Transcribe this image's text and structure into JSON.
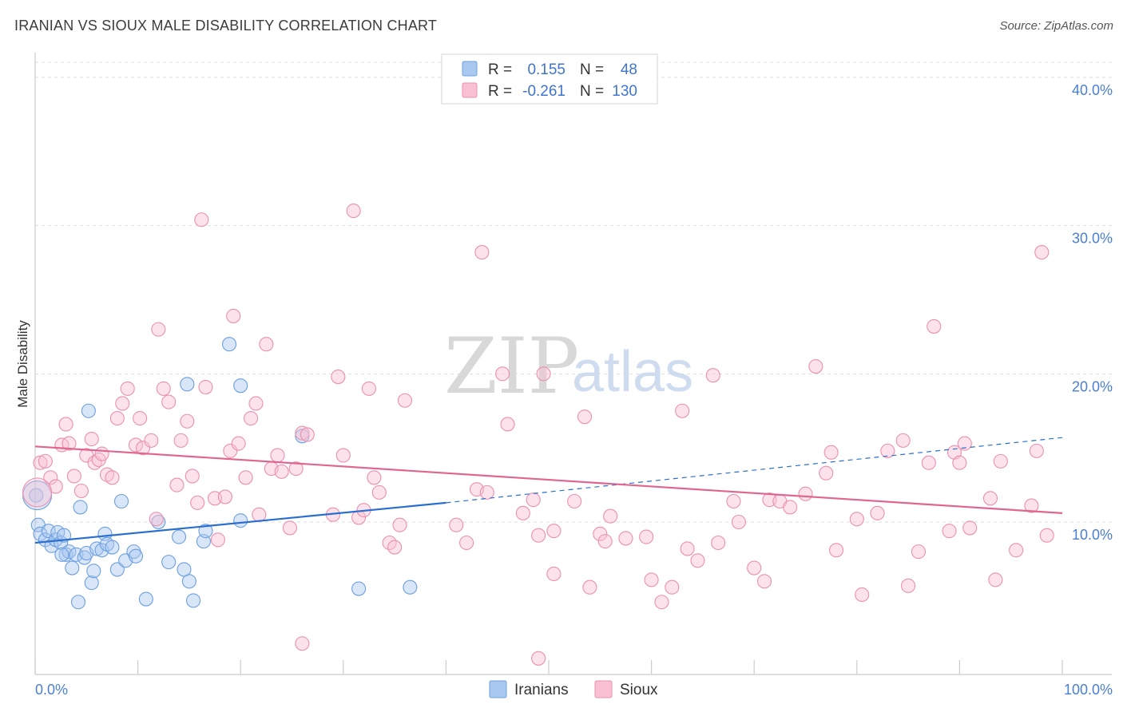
{
  "header": {
    "title": "IRANIAN VS SIOUX MALE DISABILITY CORRELATION CHART",
    "source": "Source: ZipAtlas.com"
  },
  "watermark": {
    "zip": "ZIP",
    "atlas": "atlas"
  },
  "chart_data": {
    "type": "scatter",
    "ylabel": "Male Disability",
    "xlim": [
      0,
      100
    ],
    "ylim": [
      0,
      42
    ],
    "y_ticks": [
      {
        "value": 10,
        "label": "10.0%"
      },
      {
        "value": 20,
        "label": "20.0%"
      },
      {
        "value": 30,
        "label": "30.0%"
      },
      {
        "value": 40,
        "label": "40.0%"
      }
    ],
    "x_tick_labels": {
      "left": "0.0%",
      "right": "100.0%"
    },
    "grid": true,
    "legend": {
      "placement": "top-center",
      "rows": [
        {
          "r_label": "R =",
          "r_value": "0.155",
          "n_label": "N =",
          "n_value": "48",
          "color": "#a9c8f0",
          "stroke": "#6d9fe0"
        },
        {
          "r_label": "R =",
          "r_value": "-0.261",
          "n_label": "N =",
          "n_value": "130",
          "color": "#f8c0d2",
          "stroke": "#eb8fb0"
        }
      ]
    },
    "series": [
      {
        "name": "Iranians",
        "color": "#a9c8f0",
        "stroke": "#6d9fe0",
        "line_color": "#2a6fd0",
        "trend_solid": [
          [
            0,
            8.6
          ],
          [
            40,
            11.3
          ]
        ],
        "trend_dashed": [
          [
            40,
            11.3
          ],
          [
            100,
            15.7
          ]
        ],
        "points": [
          [
            0.3,
            9.8
          ],
          [
            0.5,
            9.2
          ],
          [
            1.0,
            8.8
          ],
          [
            1.3,
            9.4
          ],
          [
            1.6,
            8.4
          ],
          [
            2.0,
            8.8
          ],
          [
            2.2,
            9.3
          ],
          [
            2.5,
            8.6
          ],
          [
            2.8,
            9.1
          ],
          [
            3.0,
            7.8
          ],
          [
            3.3,
            8.0
          ],
          [
            3.6,
            6.9
          ],
          [
            4.0,
            7.8
          ],
          [
            4.2,
            4.6
          ],
          [
            4.4,
            11.0
          ],
          [
            4.8,
            7.6
          ],
          [
            5.0,
            7.9
          ],
          [
            5.2,
            17.5
          ],
          [
            5.5,
            5.9
          ],
          [
            5.7,
            6.7
          ],
          [
            6.0,
            8.2
          ],
          [
            6.5,
            8.1
          ],
          [
            6.8,
            9.2
          ],
          [
            7.0,
            8.5
          ],
          [
            7.5,
            8.3
          ],
          [
            8.0,
            6.8
          ],
          [
            8.4,
            11.4
          ],
          [
            8.8,
            7.4
          ],
          [
            9.6,
            8.0
          ],
          [
            9.8,
            7.7
          ],
          [
            10.8,
            4.8
          ],
          [
            12.0,
            10.0
          ],
          [
            13.0,
            7.3
          ],
          [
            14.0,
            9.0
          ],
          [
            14.5,
            6.8
          ],
          [
            14.8,
            19.3
          ],
          [
            15.0,
            6.0
          ],
          [
            15.4,
            4.7
          ],
          [
            16.4,
            8.7
          ],
          [
            16.6,
            9.4
          ],
          [
            18.9,
            22.0
          ],
          [
            20.0,
            19.2
          ],
          [
            20.0,
            10.1
          ],
          [
            26.0,
            15.8
          ],
          [
            31.5,
            5.5
          ],
          [
            36.5,
            5.6
          ],
          [
            0.1,
            11.8
          ],
          [
            2.6,
            7.8
          ]
        ],
        "big_point": [
          0.2,
          11.8
        ]
      },
      {
        "name": "Sioux",
        "color": "#f8c0d2",
        "stroke": "#eb8fb0",
        "line_color": "#e0668f",
        "trend_solid": [
          [
            0,
            15.1
          ],
          [
            100,
            10.6
          ]
        ],
        "points": [
          [
            0.5,
            14.0
          ],
          [
            1.0,
            14.1
          ],
          [
            1.5,
            13.0
          ],
          [
            2.0,
            12.4
          ],
          [
            2.6,
            15.2
          ],
          [
            3.0,
            16.6
          ],
          [
            3.3,
            15.3
          ],
          [
            3.8,
            13.1
          ],
          [
            4.5,
            12.1
          ],
          [
            5.0,
            14.5
          ],
          [
            5.5,
            15.6
          ],
          [
            5.8,
            14.0
          ],
          [
            6.2,
            14.2
          ],
          [
            6.5,
            14.6
          ],
          [
            7.0,
            13.2
          ],
          [
            7.5,
            13.0
          ],
          [
            8.0,
            17.0
          ],
          [
            8.5,
            18.0
          ],
          [
            9.0,
            19.0
          ],
          [
            9.8,
            15.2
          ],
          [
            10.2,
            17.0
          ],
          [
            10.5,
            15.0
          ],
          [
            11.3,
            15.5
          ],
          [
            11.8,
            10.2
          ],
          [
            12.0,
            23.0
          ],
          [
            12.5,
            19.0
          ],
          [
            13.0,
            18.1
          ],
          [
            13.8,
            12.5
          ],
          [
            14.2,
            15.5
          ],
          [
            14.8,
            16.8
          ],
          [
            15.3,
            13.1
          ],
          [
            15.8,
            11.3
          ],
          [
            16.2,
            30.4
          ],
          [
            16.6,
            19.1
          ],
          [
            17.5,
            11.6
          ],
          [
            17.8,
            8.8
          ],
          [
            18.5,
            11.7
          ],
          [
            19.0,
            14.8
          ],
          [
            19.3,
            23.9
          ],
          [
            19.8,
            15.3
          ],
          [
            20.5,
            13.0
          ],
          [
            21.0,
            17.0
          ],
          [
            21.5,
            18.0
          ],
          [
            21.8,
            10.5
          ],
          [
            22.5,
            22.0
          ],
          [
            23.0,
            13.6
          ],
          [
            23.6,
            14.5
          ],
          [
            24.0,
            13.4
          ],
          [
            24.8,
            9.6
          ],
          [
            25.4,
            13.6
          ],
          [
            26.0,
            16.0
          ],
          [
            26.5,
            15.9
          ],
          [
            26.0,
            1.8
          ],
          [
            29.0,
            10.5
          ],
          [
            29.5,
            19.8
          ],
          [
            30.0,
            14.5
          ],
          [
            31.0,
            31.0
          ],
          [
            31.5,
            10.3
          ],
          [
            32.0,
            10.8
          ],
          [
            32.5,
            19.0
          ],
          [
            33.0,
            13.0
          ],
          [
            33.5,
            12.0
          ],
          [
            34.5,
            8.6
          ],
          [
            35.0,
            8.3
          ],
          [
            35.5,
            9.8
          ],
          [
            36.0,
            18.2
          ],
          [
            41.0,
            9.8
          ],
          [
            42.0,
            8.6
          ],
          [
            43.0,
            12.2
          ],
          [
            43.5,
            28.2
          ],
          [
            44.0,
            12.0
          ],
          [
            45.5,
            20.0
          ],
          [
            46.0,
            16.6
          ],
          [
            47.5,
            10.6
          ],
          [
            48.5,
            11.5
          ],
          [
            49.0,
            9.1
          ],
          [
            49.5,
            20.0
          ],
          [
            49.0,
            0.8
          ],
          [
            50.5,
            9.4
          ],
          [
            50.5,
            6.5
          ],
          [
            52.5,
            11.4
          ],
          [
            53.5,
            17.1
          ],
          [
            54.0,
            5.6
          ],
          [
            55.0,
            9.2
          ],
          [
            55.5,
            8.7
          ],
          [
            56.0,
            10.4
          ],
          [
            57.5,
            8.9
          ],
          [
            59.5,
            9.0
          ],
          [
            60.0,
            6.1
          ],
          [
            61.0,
            4.6
          ],
          [
            62.0,
            5.6
          ],
          [
            63.5,
            8.2
          ],
          [
            63.0,
            17.5
          ],
          [
            64.5,
            7.4
          ],
          [
            66.5,
            8.6
          ],
          [
            66.0,
            19.9
          ],
          [
            68.0,
            11.4
          ],
          [
            68.5,
            10.0
          ],
          [
            70.0,
            6.9
          ],
          [
            71.0,
            6.0
          ],
          [
            71.5,
            11.5
          ],
          [
            72.5,
            11.4
          ],
          [
            73.5,
            11.0
          ],
          [
            75.0,
            11.9
          ],
          [
            76.0,
            20.5
          ],
          [
            77.0,
            13.3
          ],
          [
            77.5,
            14.7
          ],
          [
            78.0,
            8.1
          ],
          [
            80.0,
            10.2
          ],
          [
            80.5,
            5.1
          ],
          [
            82.0,
            10.6
          ],
          [
            83.0,
            14.8
          ],
          [
            84.5,
            15.5
          ],
          [
            85.0,
            5.7
          ],
          [
            86.0,
            8.0
          ],
          [
            87.0,
            14.0
          ],
          [
            87.5,
            23.2
          ],
          [
            89.0,
            9.4
          ],
          [
            89.5,
            14.7
          ],
          [
            90.0,
            14.0
          ],
          [
            90.5,
            15.3
          ],
          [
            91.0,
            9.6
          ],
          [
            93.0,
            11.6
          ],
          [
            93.5,
            6.1
          ],
          [
            94.0,
            14.1
          ],
          [
            95.5,
            8.1
          ],
          [
            97.0,
            11.1
          ],
          [
            97.5,
            14.8
          ],
          [
            98.0,
            28.2
          ],
          [
            98.5,
            9.1
          ]
        ],
        "big_point": [
          0.2,
          12.0
        ]
      }
    ],
    "bottom_legend": [
      {
        "label": "Iranians",
        "color": "#a9c8f0",
        "stroke": "#6d9fe0"
      },
      {
        "label": "Sioux",
        "color": "#f8c0d2",
        "stroke": "#eb8fb0"
      }
    ]
  }
}
